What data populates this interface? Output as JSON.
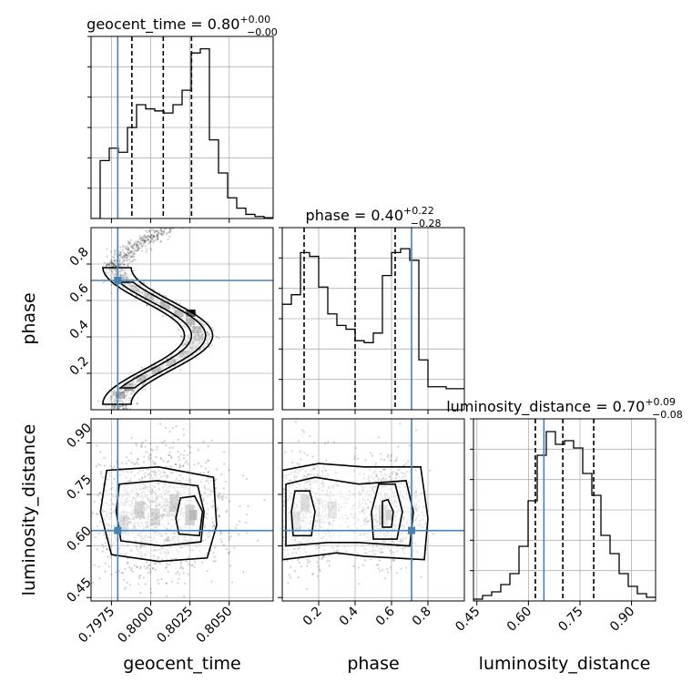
{
  "colors": {
    "truth": "#4682b4",
    "hist": "#000000",
    "grid": "#b0b0b0",
    "density": "#000000",
    "scatter": "#000000"
  },
  "chart_data": {
    "type": "corner",
    "parameters": [
      {
        "key": "geocent_time",
        "label": "geocent_time",
        "range": [
          0.7962,
          0.8078
        ],
        "ticks": [
          0.7975,
          0.8,
          0.8025,
          0.805
        ],
        "tick_labels": [
          "0.7975",
          "0.8000",
          "0.8025",
          "0.8050"
        ],
        "truth": 0.7979,
        "quantiles": [
          0.7988,
          0.8008,
          0.8026
        ],
        "title": {
          "prefix": "geocent_time = 0.80",
          "upper": "+0.00",
          "lower": "−0.00"
        },
        "hist": {
          "edges_start": 0.7962,
          "bin_width": 0.00058,
          "counts": [
            0,
            0.28,
            0.34,
            0.32,
            0.44,
            0.55,
            0.53,
            0.52,
            0.51,
            0.55,
            0.62,
            0.8,
            0.82,
            0.38,
            0.22,
            0.1,
            0.05,
            0.02,
            0.01,
            0.004
          ],
          "ymax": 0.88
        }
      },
      {
        "key": "phase",
        "label": "phase",
        "range": [
          0.0,
          1.0
        ],
        "ticks": [
          0.2,
          0.4,
          0.6,
          0.8
        ],
        "tick_labels": [
          "0.2",
          "0.4",
          "0.6",
          "0.8"
        ],
        "truth": 0.71,
        "quantiles": [
          0.12,
          0.4,
          0.62
        ],
        "title": {
          "prefix": "phase = 0.40",
          "upper": "+0.22",
          "lower": "−0.28"
        },
        "hist": {
          "edges_start": 0.0,
          "bin_width": 0.05,
          "counts": [
            0.55,
            0.6,
            0.82,
            0.8,
            0.64,
            0.5,
            0.44,
            0.42,
            0.36,
            0.35,
            0.4,
            0.7,
            0.82,
            0.84,
            0.78,
            0.26,
            0.12,
            0.12,
            0.11,
            0.11
          ],
          "ymax": 0.95
        }
      },
      {
        "key": "luminosity_distance",
        "label": "luminosity_distance",
        "range": [
          0.44,
          0.97
        ],
        "ticks": [
          0.45,
          0.6,
          0.75,
          0.9
        ],
        "tick_labels": [
          "0.45",
          "0.60",
          "0.75",
          "0.90"
        ],
        "truth": 0.645,
        "quantiles": [
          0.62,
          0.7,
          0.79
        ],
        "title": {
          "prefix": "luminosity_distance = 0.70",
          "upper": "+0.09",
          "lower": "−0.08"
        },
        "hist": {
          "edges_start": 0.44,
          "bin_width": 0.0265,
          "counts": [
            0.01,
            0.03,
            0.05,
            0.09,
            0.15,
            0.3,
            0.55,
            0.8,
            0.93,
            0.86,
            0.88,
            0.84,
            0.7,
            0.58,
            0.36,
            0.26,
            0.15,
            0.08,
            0.04,
            0.02
          ],
          "ymax": 1.0
        }
      }
    ],
    "grid": true
  }
}
